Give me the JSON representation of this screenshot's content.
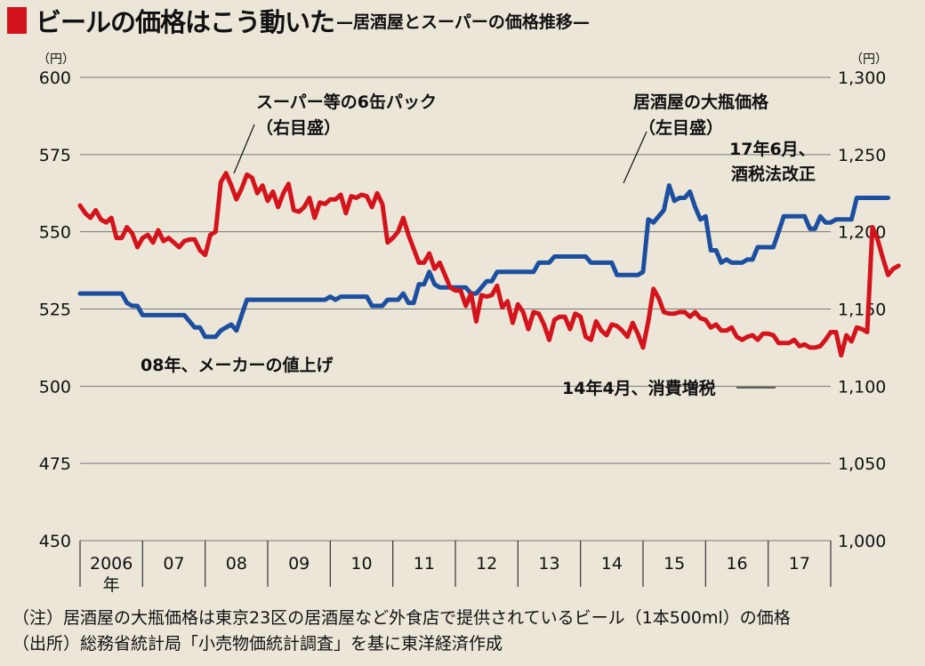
{
  "title": {
    "main": "ビールの価格はこう動いた",
    "sub": "—居酒屋とスーパーの価格推移—"
  },
  "notes": [
    "（注）居酒屋の大瓶価格は東京23区の居酒屋など外食店で提供されているビール（1本500ml）の価格",
    "（出所）総務省統計局「小売物価統計調査」を基に東洋経済作成"
  ],
  "colors": {
    "supermarket": "#d4141c",
    "izakaya": "#1c4fa0",
    "background": "#ece6d8",
    "accent": "#d4141c"
  },
  "chart_data": {
    "type": "line",
    "left_axis": {
      "unit": "（円）",
      "min": 450,
      "max": 600,
      "ticks": [
        "600",
        "575",
        "550",
        "525",
        "500",
        "475",
        "450"
      ]
    },
    "right_axis": {
      "unit": "（円）",
      "min": 1000,
      "max": 1300,
      "ticks": [
        "1,300",
        "1,250",
        "1,200",
        "1,150",
        "1,100",
        "1,050",
        "1,000"
      ]
    },
    "x_labels": [
      "2006",
      "07",
      "08",
      "09",
      "10",
      "11",
      "12",
      "13",
      "14",
      "15",
      "16",
      "17"
    ],
    "x_first_suffix": "年",
    "grid": true,
    "annotations": {
      "supermarket_label_1": "スーパー等の6缶パック",
      "supermarket_label_2": "（右目盛）",
      "izakaya_label_1": "居酒屋の大瓶価格",
      "izakaya_label_2": "（左目盛）",
      "tax_reform_1": "17年6月、",
      "tax_reform_2": "酒税法改正",
      "price_hike": "08年、メーカーの値上げ",
      "consumption_tax": "14年4月、消費増税"
    },
    "series": [
      {
        "key": "izakaya",
        "axis": "left",
        "start": 2006.0,
        "step": 0.0833333,
        "values": [
          530,
          530,
          530,
          530,
          530,
          530,
          530,
          530,
          530,
          527,
          526,
          526,
          523,
          523,
          523,
          523,
          523,
          523,
          523,
          523,
          523,
          521,
          519,
          519,
          516,
          516,
          516,
          518,
          519,
          520,
          518,
          523,
          528,
          528,
          528,
          528,
          528,
          528,
          528,
          528,
          528,
          528,
          528,
          528,
          528,
          528,
          528,
          528,
          529,
          528,
          529,
          529,
          529,
          529,
          529,
          529,
          526,
          526,
          526,
          528,
          528,
          528,
          530,
          527,
          527,
          533,
          533,
          537,
          533,
          532,
          532,
          532,
          532,
          532,
          532,
          530,
          530,
          532,
          534,
          534,
          537,
          537,
          537,
          537,
          537,
          537,
          537,
          537,
          540,
          540,
          540,
          542,
          542,
          542,
          542,
          542,
          542,
          542,
          540,
          540,
          540,
          540,
          540,
          536,
          536,
          536,
          536,
          536,
          537,
          554,
          553,
          555,
          557,
          565,
          560,
          561,
          561,
          563,
          558,
          554,
          555,
          544,
          544,
          540,
          541,
          540,
          540,
          540,
          541,
          541,
          545,
          545,
          545,
          545,
          550,
          555,
          555,
          555,
          555,
          555,
          551,
          551,
          555,
          553,
          553,
          554,
          554,
          554,
          554,
          561,
          561,
          561,
          561,
          561,
          561,
          561
        ]
      },
      {
        "key": "supermarket",
        "axis": "right",
        "start": 2006.0,
        "step": 0.0833333,
        "values": [
          1217,
          1212,
          1209,
          1214,
          1208,
          1206,
          1209,
          1196,
          1196,
          1203,
          1199,
          1190,
          1196,
          1198,
          1193,
          1201,
          1194,
          1196,
          1193,
          1190,
          1194,
          1195,
          1195,
          1188,
          1185,
          1198,
          1200,
          1232,
          1238,
          1230,
          1221,
          1228,
          1237,
          1235,
          1225,
          1230,
          1220,
          1226,
          1216,
          1225,
          1231,
          1214,
          1213,
          1216,
          1222,
          1209,
          1219,
          1218,
          1221,
          1221,
          1224,
          1212,
          1223,
          1222,
          1224,
          1223,
          1216,
          1225,
          1218,
          1193,
          1196,
          1200,
          1209,
          1198,
          1189,
          1180,
          1180,
          1186,
          1176,
          1180,
          1172,
          1164,
          1162,
          1162,
          1152,
          1160,
          1142,
          1159,
          1158,
          1159,
          1165,
          1151,
          1155,
          1141,
          1153,
          1148,
          1137,
          1148,
          1147,
          1140,
          1130,
          1143,
          1145,
          1145,
          1137,
          1147,
          1145,
          1132,
          1130,
          1142,
          1136,
          1133,
          1140,
          1139,
          1136,
          1132,
          1141,
          1134,
          1125,
          1142,
          1163,
          1157,
          1148,
          1147,
          1147,
          1148,
          1148,
          1145,
          1148,
          1144,
          1143,
          1138,
          1140,
          1136,
          1136,
          1138,
          1132,
          1130,
          1132,
          1133,
          1130,
          1134,
          1134,
          1133,
          1128,
          1128,
          1128,
          1130,
          1126,
          1127,
          1125,
          1125,
          1126,
          1130,
          1135,
          1135,
          1120,
          1133,
          1129,
          1138,
          1137,
          1135,
          1203,
          1195,
          1183,
          1172,
          1176,
          1178
        ]
      }
    ]
  }
}
